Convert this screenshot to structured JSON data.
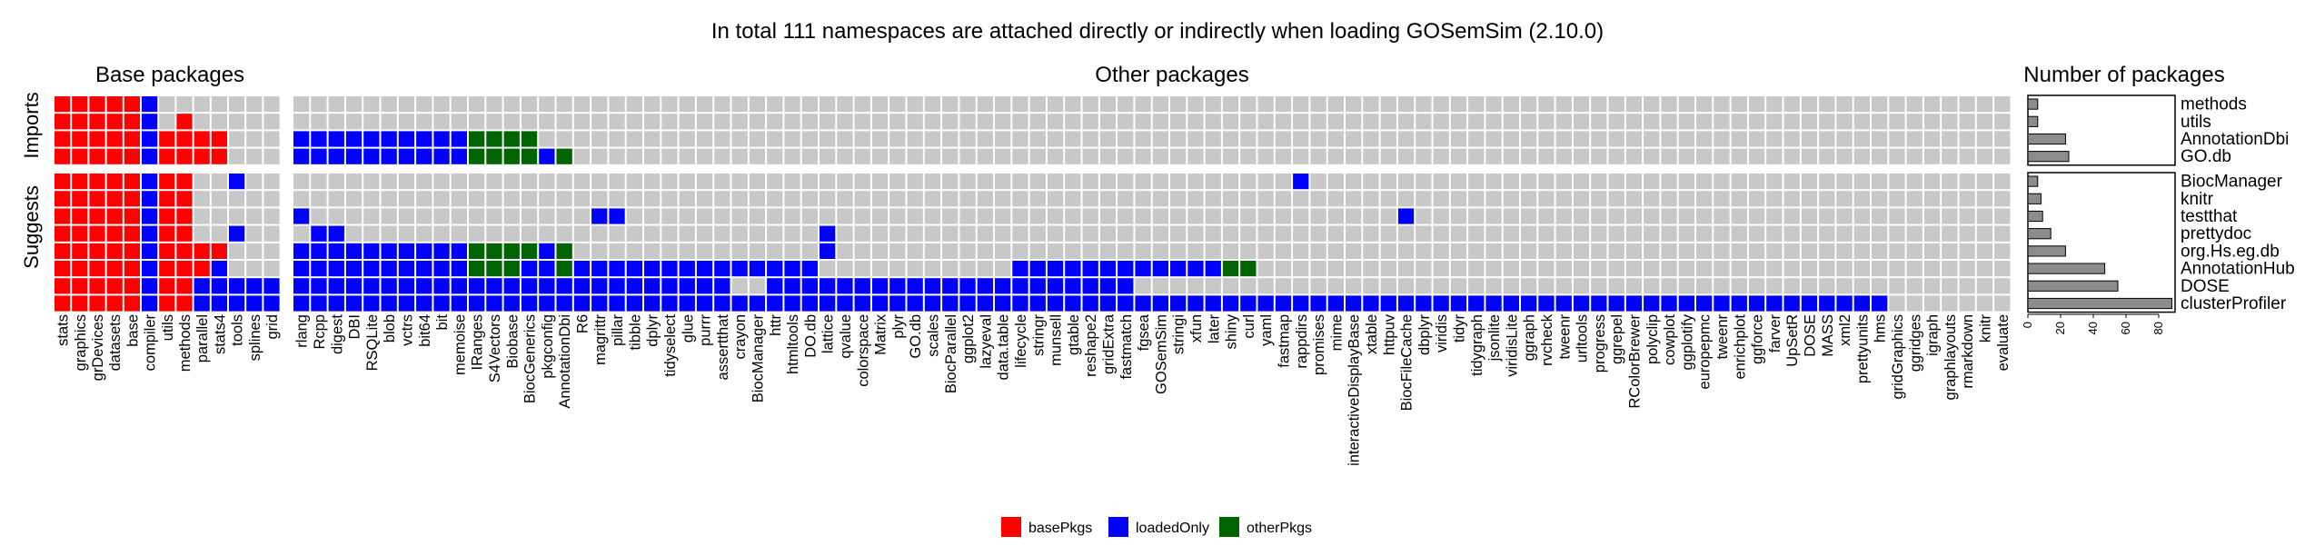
{
  "chart_data": {
    "type": "heatmap",
    "title": "In total 111 namespaces are attached directly or indirectly when loading GOSemSim (2.10.0)",
    "column_groups": [
      {
        "name": "Base packages",
        "columns": [
          "stats",
          "graphics",
          "grDevices",
          "datasets",
          "base",
          "compiler",
          "utils",
          "methods",
          "parallel",
          "stats4",
          "tools",
          "splines",
          "grid"
        ]
      },
      {
        "name": "Other packages",
        "columns": [
          "rlang",
          "Rcpp",
          "digest",
          "DBI",
          "RSQLite",
          "blob",
          "vctrs",
          "bit64",
          "bit",
          "memoise",
          "IRanges",
          "S4Vectors",
          "Biobase",
          "BiocGenerics",
          "pkgconfig",
          "AnnotationDbi",
          "R6",
          "magrittr",
          "pillar",
          "tibble",
          "dplyr",
          "tidyselect",
          "glue",
          "purrr",
          "assertthat",
          "crayon",
          "BiocManager",
          "httr",
          "htmltools",
          "DO.db",
          "lattice",
          "qvalue",
          "colorspace",
          "Matrix",
          "plyr",
          "GO.db",
          "scales",
          "BiocParallel",
          "ggplot2",
          "lazyeval",
          "data.table",
          "lifecycle",
          "stringr",
          "munsell",
          "gtable",
          "reshape2",
          "gridExtra",
          "fastmatch",
          "fgsea",
          "GOSemSim",
          "stringi",
          "xfun",
          "later",
          "shiny",
          "curl",
          "yaml",
          "fastmap",
          "rappdirs",
          "promises",
          "mime",
          "interactiveDisplayBase",
          "xtable",
          "httpuv",
          "BiocFileCache",
          "dbplyr",
          "viridis",
          "tidyr",
          "tidygraph",
          "jsonlite",
          "viridisLite",
          "ggraph",
          "rvcheck",
          "tweenr",
          "urltools",
          "progress",
          "ggrepel",
          "RColorBrewer",
          "polyclip",
          "cowplot",
          "ggplotify",
          "europepmc",
          "tweenr",
          "enrichplot",
          "ggforce",
          "farver",
          "UpSetR",
          "DOSE",
          "MASS",
          "xml2",
          "prettyunits",
          "hms",
          "gridGraphics",
          "ggridges",
          "igraph",
          "graphlayouts",
          "rmarkdown",
          "knitr",
          "evaluate"
        ]
      }
    ],
    "row_groups": [
      {
        "name": "Imports",
        "rows": [
          "methods",
          "utils",
          "AnnotationDbi",
          "GO.db"
        ]
      },
      {
        "name": "Suggests",
        "rows": [
          "BiocManager",
          "knitr",
          "testthat",
          "prettydoc",
          "org.Hs.eg.db",
          "AnnotationHub",
          "DOSE",
          "clusterProfiler"
        ]
      }
    ],
    "legend": [
      {
        "key": "basePkgs",
        "label": "basePkgs",
        "color": "#ff0000"
      },
      {
        "key": "loadedOnly",
        "label": "loadedOnly",
        "color": "#0000ff"
      },
      {
        "key": "otherPkgs",
        "label": "otherPkgs",
        "color": "#006400"
      }
    ],
    "empty_color": "#c8c8c8",
    "legend_position": "bottom",
    "grid": true,
    "cells": {
      "methods": {
        "base": "BBBBBL",
        "other": ""
      },
      "utils": {
        "base": "BBBBBLxB",
        "other": ""
      },
      "AnnotationDbi": {
        "base": "BBBBBLBBBB",
        "other": "LLLLLLLLLLOOOO"
      },
      "GO.db": {
        "base": "BBBBBLBBBB",
        "other": "LLLLLLLLLLOOOOLO"
      },
      "BiocManager": {
        "base": "BBBBBLBB..L",
        "other": ".........................................................L"
      },
      "knitr": {
        "base": "BBBBBLBB",
        "other": ""
      },
      "testthat": {
        "base": "BBBBBLBB",
        "other": "L................LL............................................L"
      },
      "prettydoc": {
        "base": "BBBBBLBB..L",
        "other": ".LL...........................L...........................................................................................LLL"
      },
      "org.Hs.eg.db": {
        "base": "BBBBBLBBBB",
        "other": "LLLLLLLLLLOOOOLO..............L"
      },
      "AnnotationHub": {
        "base": "BBBBBLBBBL",
        "other": "LLLLLLLLLLOOOLLOLLLLLLLLLLLLLL...........LLLLLLLLLLLLOO"
      },
      "DOSE": {
        "base": "BBBBBLBBLLLLL",
        "other": "LLLLLLLLLLLLLLLLLLLLLLLLL..LLLLLLLLLLLLLLLLLLLLL"
      },
      "clusterProfiler": {
        "base": "BBBBBLBBLLLLL",
        "other": "LLLLLLLLLLLLLLLLLLLLLLLLLLLLLLLLLLLLLLLLLLLLLLLLLLLLLLLLLLLLLLLLLLLLLLLLLLLLLLLLLLLLLLLLLLL"
      }
    },
    "bar_chart": {
      "title": "Number of packages",
      "ticks": [
        "0",
        "20",
        "40",
        "60",
        "80"
      ],
      "xlim": [
        0,
        90
      ],
      "values": {
        "methods": 6,
        "utils": 6,
        "AnnotationDbi": 23,
        "GO.db": 25,
        "BiocManager": 6,
        "knitr": 8,
        "testthat": 9,
        "prettydoc": 14,
        "org.Hs.eg.db": 23,
        "AnnotationHub": 47,
        "DOSE": 55,
        "clusterProfiler": 88
      }
    }
  }
}
